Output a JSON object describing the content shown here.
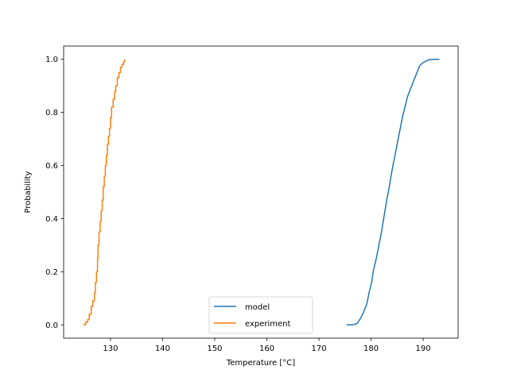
{
  "chart_data": {
    "type": "line",
    "xlabel": "Temperature [°C]",
    "ylabel": "Probability",
    "xlim": [
      121.0,
      196.7
    ],
    "ylim": [
      -0.05,
      1.05
    ],
    "xticks": [
      130,
      140,
      150,
      160,
      170,
      180,
      190
    ],
    "yticks": [
      0.0,
      0.2,
      0.4,
      0.6,
      0.8,
      1.0
    ],
    "xtick_labels": [
      "130",
      "140",
      "150",
      "160",
      "170",
      "180",
      "190"
    ],
    "ytick_labels": [
      "0.0",
      "0.2",
      "0.4",
      "0.6",
      "0.8",
      "1.0"
    ],
    "grid": false,
    "legend_position": "bottom-center",
    "series": [
      {
        "name": "model",
        "color": "#1f77b4",
        "style": "line",
        "x": [
          175.3,
          176.5,
          177.3,
          178.0,
          178.6,
          179.2,
          179.6,
          180.1,
          180.5,
          181.0,
          181.5,
          182.0,
          182.5,
          183.0,
          183.5,
          184.0,
          184.5,
          185.0,
          185.5,
          186.0,
          186.5,
          187.0,
          187.6,
          188.2,
          188.8,
          189.3,
          189.8,
          190.5,
          191.0,
          192.0,
          193.1
        ],
        "y": [
          0.0,
          0.0,
          0.005,
          0.025,
          0.05,
          0.08,
          0.12,
          0.16,
          0.21,
          0.25,
          0.3,
          0.35,
          0.41,
          0.47,
          0.52,
          0.58,
          0.63,
          0.68,
          0.73,
          0.78,
          0.82,
          0.86,
          0.89,
          0.92,
          0.95,
          0.975,
          0.985,
          0.993,
          0.998,
          1.0,
          1.0
        ]
      },
      {
        "name": "experiment",
        "color": "#ff7f0e",
        "style": "step",
        "x": [
          124.8,
          125.2,
          125.6,
          125.9,
          126.3,
          126.6,
          126.9,
          127.1,
          127.3,
          127.5,
          127.6,
          127.8,
          128.0,
          128.2,
          128.4,
          128.6,
          128.8,
          129.0,
          129.2,
          129.4,
          129.6,
          129.8,
          130.0,
          130.2,
          130.5,
          130.8,
          131.0,
          131.3,
          131.6,
          131.9,
          132.2,
          132.5,
          132.7
        ],
        "y": [
          0.0,
          0.01,
          0.02,
          0.04,
          0.07,
          0.09,
          0.12,
          0.16,
          0.2,
          0.25,
          0.3,
          0.35,
          0.39,
          0.43,
          0.47,
          0.52,
          0.56,
          0.6,
          0.64,
          0.68,
          0.71,
          0.74,
          0.78,
          0.82,
          0.85,
          0.88,
          0.9,
          0.93,
          0.95,
          0.97,
          0.98,
          0.99,
          1.0
        ]
      }
    ]
  }
}
